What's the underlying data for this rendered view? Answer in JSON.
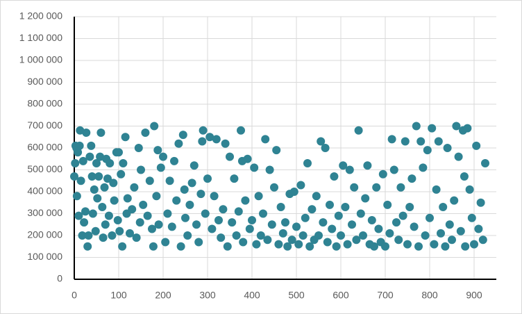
{
  "chart_data": {
    "type": "scatter",
    "x": [
      0,
      2,
      3,
      5,
      6,
      8,
      10,
      12,
      13,
      15,
      18,
      20,
      22,
      25,
      27,
      30,
      32,
      35,
      38,
      40,
      42,
      45,
      48,
      50,
      52,
      55,
      58,
      60,
      63,
      65,
      68,
      70,
      72,
      75,
      78,
      80,
      85,
      88,
      90,
      95,
      98,
      100,
      102,
      105,
      108,
      110,
      115,
      118,
      120,
      125,
      130,
      135,
      140,
      145,
      148,
      150,
      155,
      160,
      165,
      170,
      175,
      178,
      180,
      185,
      188,
      190,
      195,
      200,
      205,
      210,
      215,
      220,
      225,
      230,
      235,
      240,
      245,
      248,
      250,
      255,
      260,
      265,
      270,
      275,
      280,
      285,
      288,
      290,
      295,
      300,
      305,
      310,
      315,
      320,
      325,
      330,
      335,
      340,
      345,
      350,
      355,
      360,
      365,
      370,
      375,
      378,
      380,
      385,
      390,
      395,
      400,
      405,
      410,
      415,
      420,
      425,
      430,
      435,
      440,
      445,
      450,
      455,
      460,
      465,
      470,
      475,
      480,
      485,
      490,
      495,
      500,
      505,
      510,
      515,
      520,
      525,
      530,
      535,
      540,
      545,
      550,
      555,
      560,
      565,
      570,
      575,
      580,
      585,
      590,
      595,
      600,
      605,
      610,
      615,
      620,
      625,
      630,
      635,
      640,
      645,
      650,
      655,
      660,
      665,
      670,
      675,
      680,
      685,
      690,
      695,
      700,
      705,
      710,
      715,
      720,
      725,
      730,
      735,
      740,
      745,
      750,
      755,
      760,
      765,
      770,
      775,
      780,
      785,
      790,
      795,
      800,
      805,
      810,
      815,
      820,
      825,
      830,
      835,
      840,
      845,
      850,
      855,
      860,
      865,
      870,
      875,
      878,
      880,
      885,
      890,
      895,
      900,
      905,
      910,
      915,
      920,
      925
    ],
    "series": [
      {
        "color": "#2f8393",
        "values": [
          470000,
          530000,
          610000,
          600000,
          380000,
          580000,
          290000,
          610000,
          680000,
          450000,
          200000,
          540000,
          260000,
          310000,
          670000,
          150000,
          200000,
          560000,
          610000,
          470000,
          300000,
          410000,
          220000,
          530000,
          370000,
          470000,
          560000,
          670000,
          330000,
          190000,
          420000,
          250000,
          550000,
          460000,
          290000,
          530000,
          200000,
          440000,
          360000,
          580000,
          270000,
          580000,
          220000,
          480000,
          150000,
          530000,
          650000,
          300000,
          370000,
          210000,
          320000,
          420000,
          190000,
          600000,
          260000,
          500000,
          340000,
          670000,
          290000,
          450000,
          230000,
          150000,
          700000,
          380000,
          590000,
          250000,
          510000,
          560000,
          170000,
          300000,
          450000,
          240000,
          540000,
          360000,
          620000,
          150000,
          660000,
          410000,
          280000,
          200000,
          340000,
          440000,
          520000,
          250000,
          170000,
          390000,
          630000,
          680000,
          300000,
          460000,
          650000,
          230000,
          380000,
          640000,
          270000,
          190000,
          320000,
          620000,
          150000,
          560000,
          260000,
          460000,
          200000,
          310000,
          680000,
          540000,
          170000,
          360000,
          550000,
          230000,
          270000,
          510000,
          160000,
          380000,
          200000,
          300000,
          640000,
          180000,
          500000,
          250000,
          420000,
          590000,
          160000,
          330000,
          210000,
          260000,
          150000,
          390000,
          180000,
          400000,
          240000,
          160000,
          430000,
          200000,
          280000,
          530000,
          150000,
          320000,
          180000,
          380000,
          200000,
          630000,
          260000,
          600000,
          170000,
          340000,
          230000,
          470000,
          150000,
          290000,
          200000,
          520000,
          330000,
          160000,
          500000,
          250000,
          420000,
          180000,
          680000,
          300000,
          200000,
          370000,
          520000,
          160000,
          270000,
          150000,
          420000,
          230000,
          170000,
          480000,
          150000,
          340000,
          210000,
          640000,
          500000,
          260000,
          180000,
          420000,
          290000,
          630000,
          160000,
          330000,
          460000,
          240000,
          700000,
          150000,
          630000,
          510000,
          200000,
          590000,
          280000,
          690000,
          160000,
          410000,
          630000,
          210000,
          330000,
          150000,
          600000,
          250000,
          180000,
          360000,
          700000,
          560000,
          220000,
          680000,
          470000,
          150000,
          690000,
          410000,
          280000,
          160000,
          610000,
          230000,
          350000,
          180000,
          530000
        ]
      }
    ],
    "xlim": [
      0,
      950
    ],
    "xticks": [
      0,
      100,
      200,
      300,
      400,
      500,
      600,
      700,
      800,
      900
    ],
    "ylim": [
      0,
      1200000
    ],
    "yticks": [
      0,
      {
        "value": 100000,
        "label": "100 000"
      },
      {
        "value": 200000,
        "label": "200 000"
      },
      {
        "value": 300000,
        "label": "300 000"
      },
      {
        "value": 400000,
        "label": "400 000"
      },
      {
        "value": 500000,
        "label": "500 000"
      },
      {
        "value": 600000,
        "label": "600 000"
      },
      {
        "value": 700000,
        "label": "700 000"
      },
      {
        "value": 800000,
        "label": "800 000"
      },
      {
        "value": 900000,
        "label": "900 000"
      },
      {
        "value": 1000000,
        "label": "1 000 000"
      },
      {
        "value": 1100000,
        "label": "1 100 000"
      },
      {
        "value": 1200000,
        "label": "1 200 000"
      }
    ],
    "grid": true
  }
}
